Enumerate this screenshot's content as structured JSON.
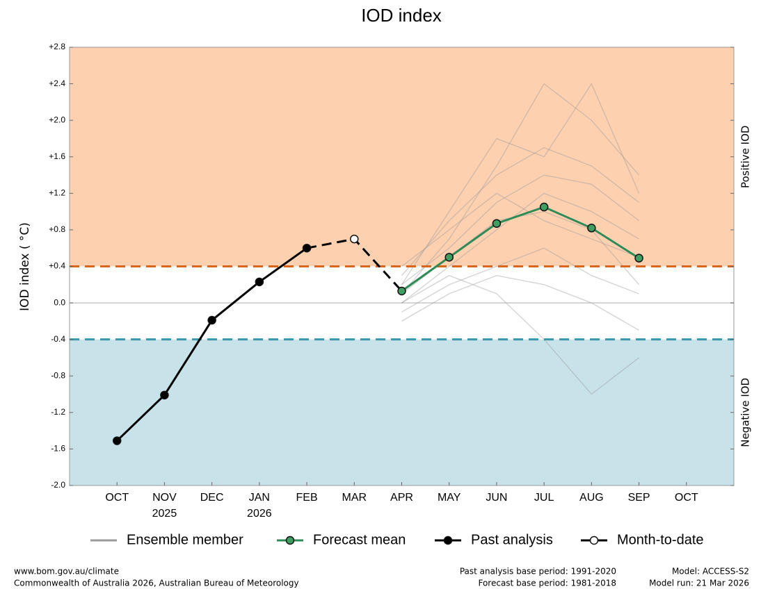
{
  "chart_data": {
    "type": "line",
    "title": "IOD index",
    "y_label": "IOD index ( °C)",
    "categories": [
      "OCT",
      "NOV",
      "DEC",
      "JAN",
      "FEB",
      "MAR",
      "APR",
      "MAY",
      "JUN",
      "JUL",
      "AUG",
      "SEP",
      "OCT"
    ],
    "year_labels": [
      null,
      "2025",
      null,
      "2026",
      null,
      null,
      null,
      null,
      null,
      null,
      null,
      null,
      null
    ],
    "ylim": [
      -2.0,
      2.8
    ],
    "yticks": [
      {
        "value": 2.8,
        "label": "+2.8"
      },
      {
        "value": 2.4,
        "label": "+2.4"
      },
      {
        "value": 2.0,
        "label": "+2.0"
      },
      {
        "value": 1.6,
        "label": "+1.6"
      },
      {
        "value": 1.2,
        "label": "+1.2"
      },
      {
        "value": 0.8,
        "label": "+0.8"
      },
      {
        "value": 0.4,
        "label": "+0.4"
      },
      {
        "value": 0,
        "label": "0.0"
      },
      {
        "value": -0.4,
        "label": "-0.4"
      },
      {
        "value": -0.8,
        "label": "-0.8"
      },
      {
        "value": -1.2,
        "label": "-1.2"
      },
      {
        "value": -1.6,
        "label": "-1.6"
      },
      {
        "value": -2.0,
        "label": "-2.0"
      }
    ],
    "thresholds": [
      {
        "value": 0.4,
        "color": "#d9661f",
        "fill": "#fdd0b0",
        "label": "Positive IOD",
        "label_color": "#e88a80"
      },
      {
        "value": -0.4,
        "color": "#3a97ad",
        "fill": "#c7e2e9",
        "label": "Negative IOD",
        "label_color": "#8888bb"
      }
    ],
    "ensemble": {
      "name": "Ensemble member",
      "color": "#9a9a9a",
      "members": [
        [
          null,
          null,
          null,
          null,
          null,
          null,
          0.3,
          0.9,
          1.4,
          1.7,
          1.5,
          1.1,
          null
        ],
        [
          null,
          null,
          null,
          null,
          null,
          null,
          0.0,
          0.4,
          0.8,
          1.2,
          1.0,
          0.7,
          null
        ],
        [
          null,
          null,
          null,
          null,
          null,
          null,
          0.2,
          0.6,
          1.1,
          1.4,
          1.3,
          0.9,
          null
        ],
        [
          null,
          null,
          null,
          null,
          null,
          null,
          -0.1,
          0.2,
          0.4,
          0.6,
          0.3,
          0.1,
          null
        ],
        [
          null,
          null,
          null,
          null,
          null,
          null,
          0.1,
          0.7,
          1.5,
          2.4,
          2.0,
          1.4,
          null
        ],
        [
          null,
          null,
          null,
          null,
          null,
          null,
          0.0,
          0.3,
          0.1,
          -0.4,
          -1.0,
          -0.6,
          null
        ],
        [
          null,
          null,
          null,
          null,
          null,
          null,
          0.2,
          1.0,
          1.8,
          1.6,
          2.4,
          1.2,
          null
        ],
        [
          null,
          null,
          null,
          null,
          null,
          null,
          -0.2,
          0.1,
          0.3,
          0.2,
          0.0,
          -0.3,
          null
        ],
        [
          null,
          null,
          null,
          null,
          null,
          null,
          0.4,
          0.8,
          1.2,
          0.9,
          0.7,
          0.5,
          null
        ],
        [
          null,
          null,
          null,
          null,
          null,
          null,
          0.1,
          0.5,
          0.9,
          1.0,
          0.8,
          0.2,
          null
        ]
      ]
    },
    "series": [
      {
        "name": "Forecast mean",
        "color": "#2e8b57",
        "marker": "filled",
        "marker_color": "#3f9f62",
        "dashed": false,
        "values": [
          null,
          null,
          null,
          null,
          null,
          null,
          0.13,
          0.5,
          0.87,
          1.05,
          0.82,
          0.49,
          null
        ]
      },
      {
        "name": "Past analysis",
        "color": "#000000",
        "marker": "filled",
        "marker_color": "#000000",
        "dashed": false,
        "values": [
          -1.51,
          -1.01,
          -0.19,
          0.23,
          0.6,
          null,
          null,
          null,
          null,
          null,
          null,
          null,
          null
        ]
      },
      {
        "name": "Month-to-date",
        "color": "#000000",
        "marker": "open",
        "marker_color": "#ffffff",
        "dashed": true,
        "values": [
          null,
          null,
          null,
          null,
          0.6,
          0.7,
          0.13,
          null,
          null,
          null,
          null,
          null,
          null
        ]
      }
    ],
    "footer_left": [
      "www.bom.gov.au/climate",
      "Commonwealth of Australia 2026, Australian Bureau of Meteorology"
    ],
    "footer_middle": [
      "Past analysis base period: 1991-2020",
      "Forecast base period: 1981-2018"
    ],
    "footer_right": [
      "Model: ACCESS-S2",
      "Model run: 21 Mar 2026"
    ]
  }
}
